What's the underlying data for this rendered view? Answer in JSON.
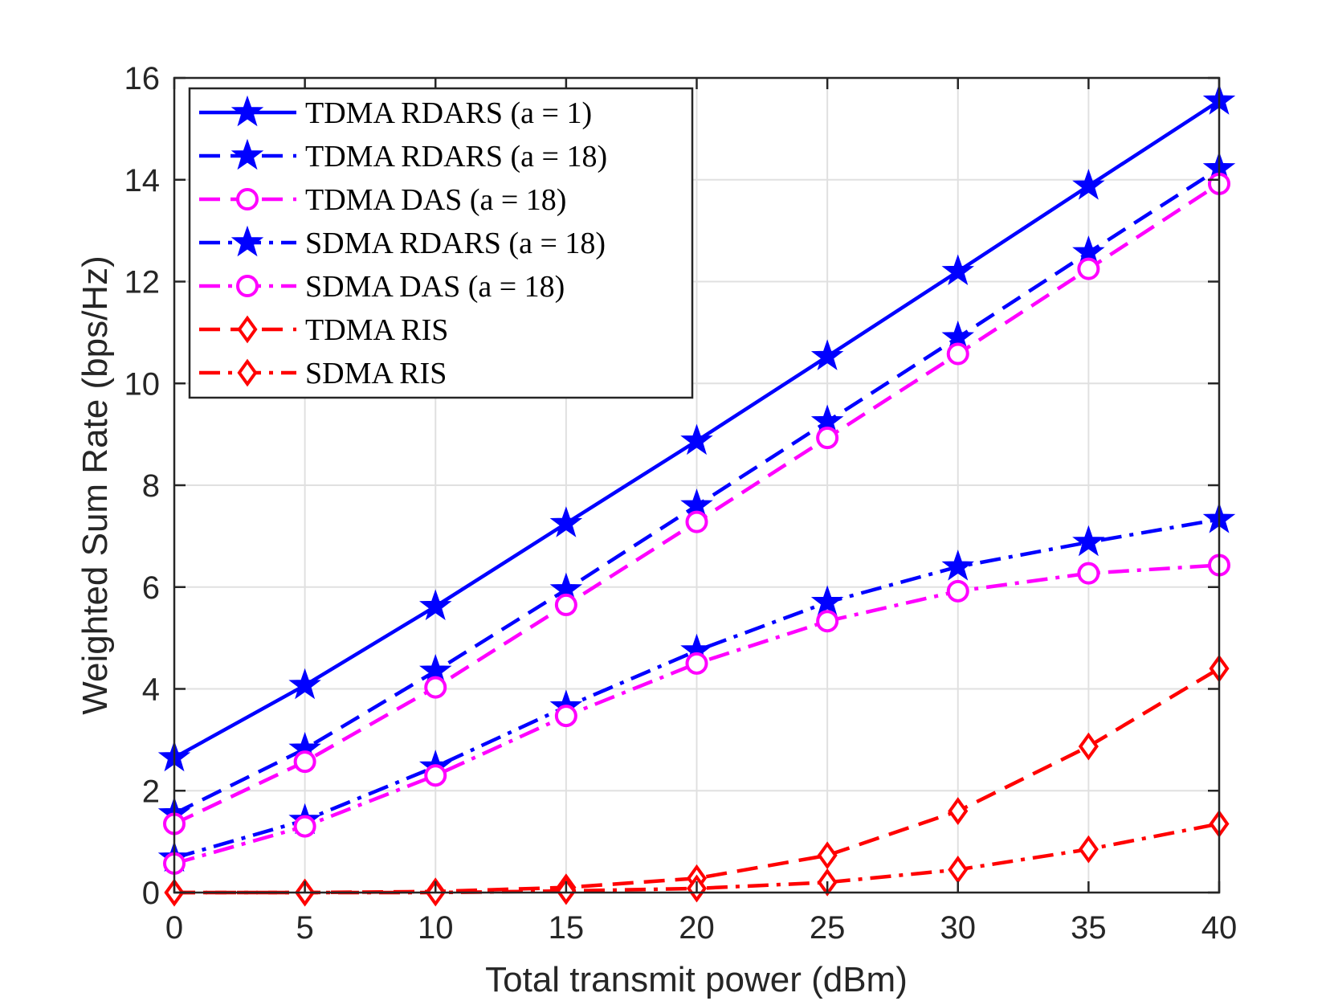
{
  "chart_data": {
    "type": "line",
    "title": "",
    "xlabel": "Total transmit power (dBm)",
    "ylabel": "Weighted Sum Rate (bps/Hz)",
    "xlim": [
      0,
      40
    ],
    "ylim": [
      0,
      16
    ],
    "x_ticks": [
      0,
      5,
      10,
      15,
      20,
      25,
      30,
      35,
      40
    ],
    "y_ticks": [
      0,
      2,
      4,
      6,
      8,
      10,
      12,
      14,
      16
    ],
    "grid": true,
    "legend_position": "top-left",
    "x": [
      0,
      5,
      10,
      15,
      20,
      25,
      30,
      35,
      40
    ],
    "series": [
      {
        "name": "TDMA RDARS (a = 1)",
        "legend_label": "TDMA RDARS",
        "legend_param": "(a = 1)",
        "color": "#0000ff",
        "line_style": "solid",
        "marker": "star",
        "values": [
          2.65,
          4.07,
          5.62,
          7.25,
          8.87,
          10.53,
          12.2,
          13.88,
          15.55
        ]
      },
      {
        "name": "TDMA RDARS (a = 18)",
        "legend_label": "TDMA RDARS",
        "legend_param": "(a = 18)",
        "color": "#0000ff",
        "line_style": "dashed",
        "marker": "star",
        "values": [
          1.55,
          2.82,
          4.35,
          5.95,
          7.6,
          9.25,
          10.9,
          12.57,
          14.22
        ]
      },
      {
        "name": "TDMA DAS (a = 18)",
        "legend_label": "TDMA DAS",
        "legend_param": "(a = 18)",
        "color": "#ff00ff",
        "line_style": "dashed",
        "marker": "circle",
        "values": [
          1.35,
          2.57,
          4.03,
          5.65,
          7.28,
          8.93,
          10.58,
          12.25,
          13.92
        ]
      },
      {
        "name": "SDMA RDARS (a = 18)",
        "legend_label": "SDMA RDARS",
        "legend_param": "(a = 18)",
        "color": "#0000ff",
        "line_style": "dashdot",
        "marker": "star",
        "values": [
          0.68,
          1.42,
          2.47,
          3.65,
          4.75,
          5.7,
          6.4,
          6.88,
          7.33
        ]
      },
      {
        "name": "SDMA DAS (a = 18)",
        "legend_label": "SDMA DAS",
        "legend_param": "(a = 18)",
        "color": "#ff00ff",
        "line_style": "dashdot",
        "marker": "circle",
        "values": [
          0.57,
          1.3,
          2.3,
          3.47,
          4.5,
          5.33,
          5.92,
          6.27,
          6.43
        ]
      },
      {
        "name": "TDMA RIS",
        "legend_label": "TDMA RIS",
        "legend_param": "",
        "color": "#ff0000",
        "line_style": "dashed",
        "marker": "diamond",
        "values": [
          0.0,
          0.0,
          0.02,
          0.1,
          0.28,
          0.73,
          1.6,
          2.87,
          4.4
        ]
      },
      {
        "name": "SDMA RIS",
        "legend_label": "SDMA RIS",
        "legend_param": "",
        "color": "#ff0000",
        "line_style": "dashdot",
        "marker": "diamond",
        "values": [
          0.0,
          0.0,
          0.0,
          0.03,
          0.08,
          0.2,
          0.45,
          0.85,
          1.35
        ]
      }
    ]
  }
}
